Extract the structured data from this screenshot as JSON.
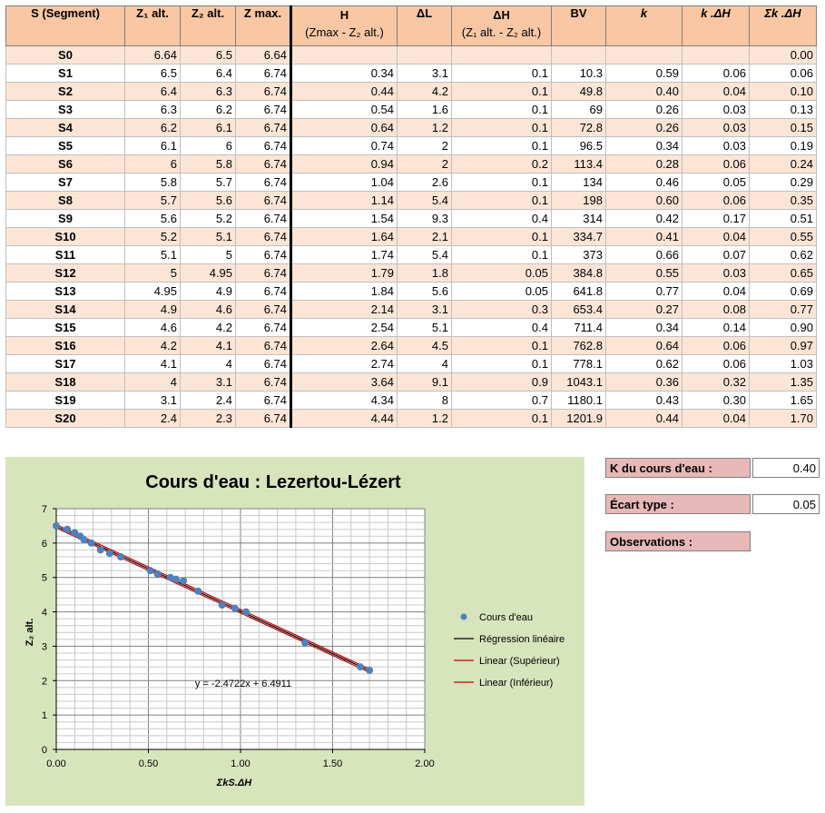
{
  "table": {
    "headers": {
      "segment": "S (Segment)",
      "z1": "Z₁ alt.",
      "z2": "Z₂ alt.",
      "zmax": "Z max.",
      "h": "H",
      "h_sub": "(Zmax - Z₂ alt.)",
      "dl": "ΔL",
      "dh": "ΔH",
      "dh_sub": "(Z₁ alt. - Z₂ alt.)",
      "bv": "BV",
      "k": "k",
      "kdh": "k .ΔH",
      "sumkdh": "Σk .ΔH"
    },
    "rows": [
      {
        "s": "S0",
        "z1": "6.64",
        "z2": "6.5",
        "zmax": "6.64",
        "h": "",
        "dl": "",
        "dh": "",
        "bv": "",
        "k": "",
        "kdh": "",
        "sum": "0.00"
      },
      {
        "s": "S1",
        "z1": "6.5",
        "z2": "6.4",
        "zmax": "6.74",
        "h": "0.34",
        "dl": "3.1",
        "dh": "0.1",
        "bv": "10.3",
        "k": "0.59",
        "kdh": "0.06",
        "sum": "0.06"
      },
      {
        "s": "S2",
        "z1": "6.4",
        "z2": "6.3",
        "zmax": "6.74",
        "h": "0.44",
        "dl": "4.2",
        "dh": "0.1",
        "bv": "49.8",
        "k": "0.40",
        "kdh": "0.04",
        "sum": "0.10"
      },
      {
        "s": "S3",
        "z1": "6.3",
        "z2": "6.2",
        "zmax": "6.74",
        "h": "0.54",
        "dl": "1.6",
        "dh": "0.1",
        "bv": "69",
        "k": "0.26",
        "kdh": "0.03",
        "sum": "0.13"
      },
      {
        "s": "S4",
        "z1": "6.2",
        "z2": "6.1",
        "zmax": "6.74",
        "h": "0.64",
        "dl": "1.2",
        "dh": "0.1",
        "bv": "72.8",
        "k": "0.26",
        "kdh": "0.03",
        "sum": "0.15"
      },
      {
        "s": "S5",
        "z1": "6.1",
        "z2": "6",
        "zmax": "6.74",
        "h": "0.74",
        "dl": "2",
        "dh": "0.1",
        "bv": "96.5",
        "k": "0.34",
        "kdh": "0.03",
        "sum": "0.19"
      },
      {
        "s": "S6",
        "z1": "6",
        "z2": "5.8",
        "zmax": "6.74",
        "h": "0.94",
        "dl": "2",
        "dh": "0.2",
        "bv": "113.4",
        "k": "0.28",
        "kdh": "0.06",
        "sum": "0.24"
      },
      {
        "s": "S7",
        "z1": "5.8",
        "z2": "5.7",
        "zmax": "6.74",
        "h": "1.04",
        "dl": "2.6",
        "dh": "0.1",
        "bv": "134",
        "k": "0.46",
        "kdh": "0.05",
        "sum": "0.29"
      },
      {
        "s": "S8",
        "z1": "5.7",
        "z2": "5.6",
        "zmax": "6.74",
        "h": "1.14",
        "dl": "5.4",
        "dh": "0.1",
        "bv": "198",
        "k": "0.60",
        "kdh": "0.06",
        "sum": "0.35"
      },
      {
        "s": "S9",
        "z1": "5.6",
        "z2": "5.2",
        "zmax": "6.74",
        "h": "1.54",
        "dl": "9.3",
        "dh": "0.4",
        "bv": "314",
        "k": "0.42",
        "kdh": "0.17",
        "sum": "0.51"
      },
      {
        "s": "S10",
        "z1": "5.2",
        "z2": "5.1",
        "zmax": "6.74",
        "h": "1.64",
        "dl": "2.1",
        "dh": "0.1",
        "bv": "334.7",
        "k": "0.41",
        "kdh": "0.04",
        "sum": "0.55"
      },
      {
        "s": "S11",
        "z1": "5.1",
        "z2": "5",
        "zmax": "6.74",
        "h": "1.74",
        "dl": "5.4",
        "dh": "0.1",
        "bv": "373",
        "k": "0.66",
        "kdh": "0.07",
        "sum": "0.62"
      },
      {
        "s": "S12",
        "z1": "5",
        "z2": "4.95",
        "zmax": "6.74",
        "h": "1.79",
        "dl": "1.8",
        "dh": "0.05",
        "bv": "384.8",
        "k": "0.55",
        "kdh": "0.03",
        "sum": "0.65"
      },
      {
        "s": "S13",
        "z1": "4.95",
        "z2": "4.9",
        "zmax": "6.74",
        "h": "1.84",
        "dl": "5.6",
        "dh": "0.05",
        "bv": "641.8",
        "k": "0.77",
        "kdh": "0.04",
        "sum": "0.69"
      },
      {
        "s": "S14",
        "z1": "4.9",
        "z2": "4.6",
        "zmax": "6.74",
        "h": "2.14",
        "dl": "3.1",
        "dh": "0.3",
        "bv": "653.4",
        "k": "0.27",
        "kdh": "0.08",
        "sum": "0.77"
      },
      {
        "s": "S15",
        "z1": "4.6",
        "z2": "4.2",
        "zmax": "6.74",
        "h": "2.54",
        "dl": "5.1",
        "dh": "0.4",
        "bv": "711.4",
        "k": "0.34",
        "kdh": "0.14",
        "sum": "0.90"
      },
      {
        "s": "S16",
        "z1": "4.2",
        "z2": "4.1",
        "zmax": "6.74",
        "h": "2.64",
        "dl": "4.5",
        "dh": "0.1",
        "bv": "762.8",
        "k": "0.64",
        "kdh": "0.06",
        "sum": "0.97"
      },
      {
        "s": "S17",
        "z1": "4.1",
        "z2": "4",
        "zmax": "6.74",
        "h": "2.74",
        "dl": "4",
        "dh": "0.1",
        "bv": "778.1",
        "k": "0.62",
        "kdh": "0.06",
        "sum": "1.03"
      },
      {
        "s": "S18",
        "z1": "4",
        "z2": "3.1",
        "zmax": "6.74",
        "h": "3.64",
        "dl": "9.1",
        "dh": "0.9",
        "bv": "1043.1",
        "k": "0.36",
        "kdh": "0.32",
        "sum": "1.35"
      },
      {
        "s": "S19",
        "z1": "3.1",
        "z2": "2.4",
        "zmax": "6.74",
        "h": "4.34",
        "dl": "8",
        "dh": "0.7",
        "bv": "1180.1",
        "k": "0.43",
        "kdh": "0.30",
        "sum": "1.65"
      },
      {
        "s": "S20",
        "z1": "2.4",
        "z2": "2.3",
        "zmax": "6.74",
        "h": "4.44",
        "dl": "1.2",
        "dh": "0.1",
        "bv": "1201.9",
        "k": "0.44",
        "kdh": "0.04",
        "sum": "1.70"
      }
    ]
  },
  "summary": {
    "k_label": "K du cours d'eau :",
    "k_value": "0.40",
    "ecart_label": "Écart type :",
    "ecart_value": "0.05",
    "obs_label": "Observations :"
  },
  "colors": {
    "header_bg": "#f9c7a3",
    "alt_row_bg": "#fde5d6",
    "chart_bg": "#d7e4bc",
    "label_bg": "#e6b9b8",
    "point_color": "#4f81bd",
    "bound_color": "#c00000"
  },
  "chart_data": {
    "type": "scatter",
    "title": "Cours d'eau : Lezertou-Lézert",
    "xlabel": "ΣkS.ΔH",
    "ylabel": "Z₂ alt.",
    "xlim": [
      0,
      2
    ],
    "ylim": [
      0,
      7
    ],
    "x_ticks": [
      "0.00",
      "0.50",
      "1.00",
      "1.50",
      "2.00"
    ],
    "y_ticks": [
      "0",
      "1",
      "2",
      "3",
      "4",
      "5",
      "6",
      "7"
    ],
    "grid": true,
    "series": [
      {
        "name": "Cours d'eau",
        "x": [
          0.0,
          0.06,
          0.1,
          0.13,
          0.15,
          0.19,
          0.24,
          0.29,
          0.35,
          0.51,
          0.55,
          0.62,
          0.65,
          0.69,
          0.77,
          0.9,
          0.97,
          1.03,
          1.35,
          1.65,
          1.7
        ],
        "y": [
          6.5,
          6.4,
          6.3,
          6.2,
          6.1,
          6.0,
          5.8,
          5.7,
          5.6,
          5.2,
          5.1,
          5.0,
          4.95,
          4.9,
          4.6,
          4.2,
          4.1,
          4.0,
          3.1,
          2.4,
          2.3
        ]
      }
    ],
    "regression": {
      "name": "Régression linéaire",
      "slope": -2.4722,
      "intercept": 6.4911,
      "x_range": [
        0,
        1.7
      ]
    },
    "upper": {
      "name": "Linear (Supérieur)",
      "offset": 0.05
    },
    "lower": {
      "name": "Linear (Inférieur)",
      "offset": -0.05
    },
    "equation_label": "y = -2.4722x + 6.4911",
    "legend_position": "right"
  }
}
